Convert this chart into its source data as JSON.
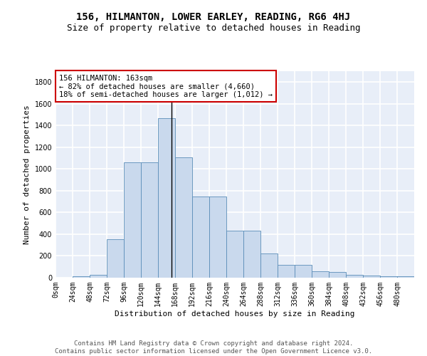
{
  "title": "156, HILMANTON, LOWER EARLEY, READING, RG6 4HJ",
  "subtitle": "Size of property relative to detached houses in Reading",
  "xlabel": "Distribution of detached houses by size in Reading",
  "ylabel": "Number of detached properties",
  "bar_values": [
    0,
    10,
    25,
    355,
    1060,
    1060,
    1470,
    1110,
    750,
    750,
    435,
    435,
    220,
    115,
    115,
    60,
    50,
    25,
    18,
    12,
    10
  ],
  "bar_color": "#c9d9ed",
  "bar_edge_color": "#5b8db8",
  "property_line_x": 163,
  "annotation_text": "156 HILMANTON: 163sqm\n← 82% of detached houses are smaller (4,660)\n18% of semi-detached houses are larger (1,012) →",
  "annotation_box_color": "#ffffff",
  "annotation_box_edge": "#cc0000",
  "ylim": [
    0,
    1900
  ],
  "xlim": [
    0,
    504
  ],
  "yticks": [
    0,
    200,
    400,
    600,
    800,
    1000,
    1200,
    1400,
    1600,
    1800
  ],
  "xtick_labels": [
    "0sqm",
    "24sqm",
    "48sqm",
    "72sqm",
    "96sqm",
    "120sqm",
    "144sqm",
    "168sqm",
    "192sqm",
    "216sqm",
    "240sqm",
    "264sqm",
    "288sqm",
    "312sqm",
    "336sqm",
    "360sqm",
    "384sqm",
    "408sqm",
    "432sqm",
    "456sqm",
    "480sqm"
  ],
  "xtick_positions": [
    0,
    24,
    48,
    72,
    96,
    120,
    144,
    168,
    192,
    216,
    240,
    264,
    288,
    312,
    336,
    360,
    384,
    408,
    432,
    456,
    480
  ],
  "background_color": "#e8eef8",
  "grid_color": "#ffffff",
  "fig_background": "#ffffff",
  "footer_text": "Contains HM Land Registry data © Crown copyright and database right 2024.\nContains public sector information licensed under the Open Government Licence v3.0.",
  "title_fontsize": 10,
  "subtitle_fontsize": 9,
  "axis_label_fontsize": 8,
  "tick_fontsize": 7,
  "annotation_fontsize": 7.5,
  "footer_fontsize": 6.5
}
